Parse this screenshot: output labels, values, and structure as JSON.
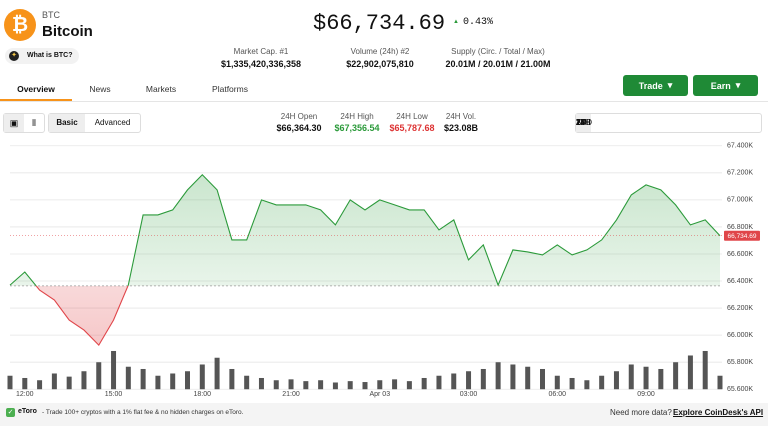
{
  "header": {
    "symbol": "BTC",
    "name": "Bitcoin",
    "about": "What is BTC?",
    "price": "$66,734.69",
    "change": "0.43%",
    "stats": [
      {
        "label": "Market Cap. #1",
        "value": "$1,335,420,336,358"
      },
      {
        "label": "Volume (24h) #2",
        "value": "$22,902,075,810"
      },
      {
        "label": "Supply (Circ. / Total / Max)",
        "value": "20.01M / 20.01M / 21.00M"
      }
    ]
  },
  "tabs": [
    "Overview",
    "News",
    "Markets",
    "Platforms"
  ],
  "buttons": [
    "Trade",
    "Earn"
  ],
  "modes": [
    "Basic",
    "Advanced"
  ],
  "stats24h": [
    {
      "label": "24H Open",
      "value": "$66,364.30"
    },
    {
      "label": "24H High",
      "value": "$67,356.54"
    },
    {
      "label": "24H Low",
      "value": "$65,787.68"
    },
    {
      "label": "24H Vol.",
      "value": "$23.08B"
    }
  ],
  "ranges": [
    "1H",
    "24H",
    "7D",
    "1M",
    "YTD",
    "1Y",
    "All"
  ],
  "chart_data": {
    "type": "line",
    "categories": [
      null,
      "12:00",
      null,
      null,
      null,
      null,
      null,
      "15:00",
      null,
      null,
      null,
      null,
      null,
      "18:00",
      null,
      null,
      null,
      null,
      null,
      "21:00",
      null,
      null,
      null,
      null,
      null,
      "Apr 03",
      null,
      null,
      null,
      null,
      null,
      "03:00",
      null,
      null,
      null,
      null,
      null,
      "06:00",
      null,
      null,
      null,
      null,
      null,
      "09:00",
      null,
      null,
      null,
      null,
      null
    ],
    "values": [
      66370,
      66467,
      66333,
      66260,
      66111,
      66037,
      65926,
      66111,
      66370,
      66889,
      66889,
      66926,
      67074,
      67185,
      67074,
      66704,
      66704,
      67000,
      66963,
      66963,
      66963,
      66926,
      66815,
      67000,
      66926,
      67000,
      66963,
      66926,
      66926,
      66778,
      66852,
      66556,
      66667,
      66370,
      66630,
      66615,
      66593,
      66667,
      66593,
      66630,
      66704,
      66852,
      67037,
      67111,
      67074,
      66963,
      66815,
      66852,
      66734.69
    ],
    "last_value_label": "66,734.69",
    "volume": [
      30,
      25,
      20,
      35,
      28,
      40,
      60,
      85,
      50,
      45,
      30,
      35,
      40,
      55,
      70,
      45,
      30,
      25,
      20,
      22,
      18,
      20,
      15,
      18,
      16,
      20,
      22,
      18,
      25,
      30,
      35,
      40,
      45,
      60,
      55,
      50,
      45,
      30,
      25,
      20,
      30,
      40,
      55,
      50,
      45,
      60,
      75,
      85,
      30
    ],
    "open": 66364.3,
    "color_up": "#2b9a3a",
    "color_down": "#e0464a",
    "volume_color": "#555555",
    "ylim": [
      65550,
      67450
    ],
    "yticks": [
      {
        "value": 67400,
        "label": "67.400K"
      },
      {
        "value": 67200,
        "label": "67.200K"
      },
      {
        "value": 67000,
        "label": "67.000K"
      },
      {
        "value": 66800,
        "label": "66.800K"
      },
      {
        "value": 66600,
        "label": "66.600K"
      },
      {
        "value": 66400,
        "label": "66.400K"
      },
      {
        "value": 66200,
        "label": "66.200K"
      },
      {
        "value": 66000,
        "label": "66.000K"
      },
      {
        "value": 65800,
        "label": "65.800K"
      },
      {
        "value": 65600,
        "label": "65.600K"
      }
    ],
    "grid": true
  },
  "footer": {
    "ad_brand": "eToro",
    "ad_text": "- Trade 100+ cryptos with a 1% flat fee & no hidden charges on eToro.",
    "question": "Need more data?",
    "link": "Explore CoinDesk's API"
  }
}
